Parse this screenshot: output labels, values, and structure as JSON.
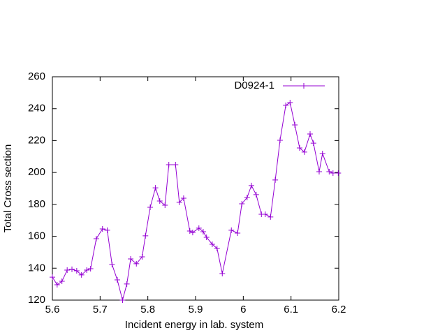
{
  "chart_data": {
    "type": "line",
    "xlabel": "Incident energy in lab. system",
    "ylabel": "Total Cross section",
    "xlim": [
      5.6,
      6.2
    ],
    "xticks": [
      5.6,
      5.7,
      5.8,
      5.9,
      6,
      6.1,
      6.2
    ],
    "ylim": [
      120,
      260
    ],
    "yticks": [
      120,
      140,
      160,
      180,
      200,
      220,
      240,
      260
    ],
    "legend": "top-right",
    "series": [
      {
        "name": "D0924-1",
        "color": "#9400d3",
        "x": [
          5.6,
          5.61,
          5.62,
          5.631,
          5.641,
          5.651,
          5.661,
          5.672,
          5.68,
          5.692,
          5.705,
          5.715,
          5.725,
          5.736,
          5.747,
          5.756,
          5.764,
          5.776,
          5.788,
          5.795,
          5.805,
          5.816,
          5.825,
          5.836,
          5.844,
          5.858,
          5.866,
          5.875,
          5.888,
          5.894,
          5.907,
          5.916,
          5.923,
          5.935,
          5.945,
          5.956,
          5.975,
          5.988,
          5.997,
          6.008,
          6.017,
          6.027,
          6.038,
          6.046,
          6.057,
          6.067,
          6.077,
          6.089,
          6.098,
          6.108,
          6.118,
          6.128,
          6.14,
          6.147,
          6.159,
          6.166,
          6.18,
          6.188,
          6.199
        ],
        "values": [
          134.4,
          129.6,
          131.8,
          138.8,
          139.3,
          138.4,
          135.8,
          138.8,
          139.7,
          158.5,
          164.6,
          163.8,
          142.3,
          132.7,
          120,
          130.1,
          145.8,
          142.8,
          147.1,
          160.3,
          178.2,
          190.4,
          182.1,
          179.5,
          204.9,
          204.9,
          181.3,
          183.9,
          163.3,
          162.4,
          165.1,
          162.9,
          159.4,
          155,
          152.4,
          136.6,
          163.8,
          162,
          180.4,
          184.3,
          191.8,
          186.1,
          173.8,
          173.8,
          172.1,
          195.3,
          220.2,
          242.1,
          243.8,
          229.8,
          215.4,
          212.8,
          224.1,
          218.4,
          200.5,
          211.9,
          200.5,
          199.6,
          199.6
        ]
      }
    ]
  }
}
